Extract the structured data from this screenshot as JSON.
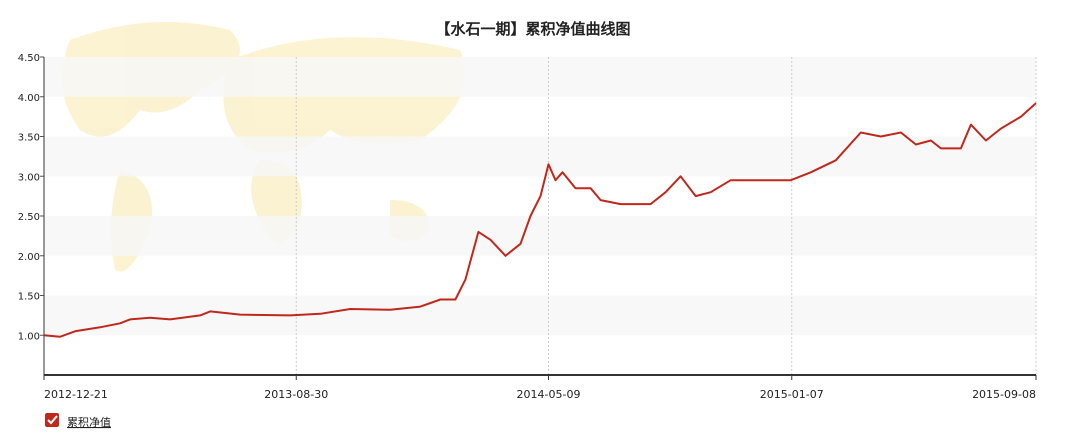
{
  "chart_data": {
    "type": "line",
    "title": "【水石一期】累积净值曲线图",
    "x": [
      "2012-12-21",
      "2013-01-06",
      "2013-01-21",
      "2013-02-15",
      "2013-03-07",
      "2013-03-17",
      "2013-04-06",
      "2013-04-26",
      "2013-05-26",
      "2013-06-05",
      "2013-07-05",
      "2013-08-24",
      "2013-09-23",
      "2013-10-23",
      "2013-12-02",
      "2014-01-01",
      "2014-01-21",
      "2014-02-05",
      "2014-02-15",
      "2014-02-28",
      "2014-03-12",
      "2014-03-27",
      "2014-04-11",
      "2014-04-21",
      "2014-05-01",
      "2014-05-09",
      "2014-05-16",
      "2014-05-23",
      "2014-06-05",
      "2014-06-20",
      "2014-06-30",
      "2014-07-20",
      "2014-08-19",
      "2014-09-03",
      "2014-09-18",
      "2014-10-03",
      "2014-10-18",
      "2014-11-07",
      "2014-12-07",
      "2015-01-06",
      "2015-01-26",
      "2015-02-20",
      "2015-03-17",
      "2015-04-06",
      "2015-04-26",
      "2015-05-11",
      "2015-05-26",
      "2015-06-05",
      "2015-06-25",
      "2015-07-05",
      "2015-07-20",
      "2015-08-04",
      "2015-08-24",
      "2015-09-08"
    ],
    "series": [
      {
        "name": "累积净值",
        "color": "#c0281c",
        "values": [
          1.0,
          0.98,
          1.05,
          1.1,
          1.15,
          1.2,
          1.22,
          1.2,
          1.25,
          1.3,
          1.26,
          1.25,
          1.27,
          1.33,
          1.32,
          1.36,
          1.45,
          1.45,
          1.7,
          2.3,
          2.2,
          2.0,
          2.15,
          2.5,
          2.75,
          3.15,
          2.95,
          3.05,
          2.85,
          2.85,
          2.7,
          2.65,
          2.65,
          2.8,
          3.0,
          2.75,
          2.8,
          2.95,
          2.95,
          2.95,
          3.05,
          3.2,
          3.55,
          3.5,
          3.55,
          3.4,
          3.45,
          3.35,
          3.35,
          3.65,
          3.45,
          3.6,
          3.75,
          3.92
        ]
      }
    ],
    "xlim": [
      "2012-12-21",
      "2015-09-08"
    ],
    "xticks": [
      "2012-12-21",
      "2013-08-30",
      "2014-05-09",
      "2015-01-07",
      "2015-09-08"
    ],
    "ylim": [
      0.5,
      4.5
    ],
    "yticks": [
      {
        "value": 1,
        "label": "1.00"
      },
      {
        "value": 1.5,
        "label": "1.50"
      },
      {
        "value": 2,
        "label": "2.00"
      },
      {
        "value": 2.5,
        "label": "2.50"
      },
      {
        "value": 3,
        "label": "3.00"
      },
      {
        "value": 3.5,
        "label": "3.50"
      },
      {
        "value": 4,
        "label": "4.00"
      },
      {
        "value": 4.5,
        "label": "4.50"
      }
    ],
    "grid": true
  }
}
